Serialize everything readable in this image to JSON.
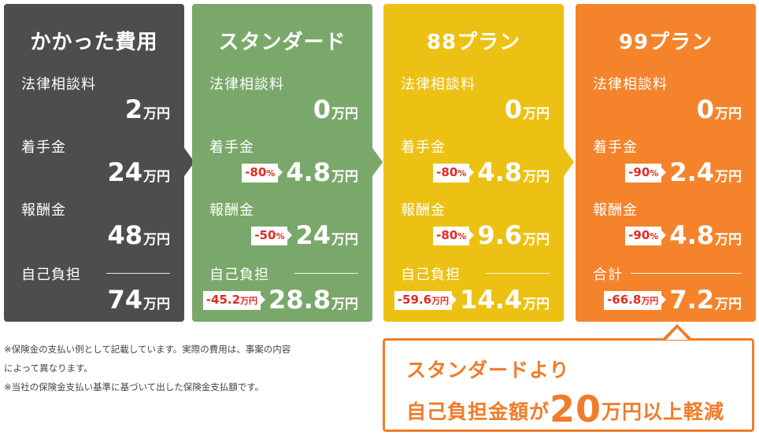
{
  "colors": {
    "gray": "#4d4d4d",
    "green": "#7aa86a",
    "yellow": "#ecc113",
    "orange": "#f5832b",
    "badge_red": "#e32a22"
  },
  "cards": [
    {
      "title": "かかった費用",
      "rows": [
        {
          "label": "法律相談料",
          "value": "2",
          "unit": "万円"
        },
        {
          "label": "着手金",
          "value": "24",
          "unit": "万円"
        },
        {
          "label": "報酬金",
          "value": "48",
          "unit": "万円"
        },
        {
          "label": "自己負担",
          "value": "74",
          "unit": "万円"
        }
      ]
    },
    {
      "title": "スタンダード",
      "rows": [
        {
          "label": "法律相談料",
          "value": "0",
          "unit": "万円"
        },
        {
          "label": "着手金",
          "badge": "-80",
          "badge_unit": "%",
          "value": "4.8",
          "unit": "万円"
        },
        {
          "label": "報酬金",
          "badge": "-50",
          "badge_unit": "%",
          "value": "24",
          "unit": "万円"
        },
        {
          "label": "自己負担",
          "badge": "-45.2",
          "badge_unit": "万円",
          "value": "28.8",
          "unit": "万円"
        }
      ]
    },
    {
      "title": "88プラン",
      "rows": [
        {
          "label": "法律相談料",
          "value": "0",
          "unit": "万円"
        },
        {
          "label": "着手金",
          "badge": "-80",
          "badge_unit": "%",
          "value": "4.8",
          "unit": "万円"
        },
        {
          "label": "報酬金",
          "badge": "-80",
          "badge_unit": "%",
          "value": "9.6",
          "unit": "万円"
        },
        {
          "label": "自己負担",
          "badge": "-59.6",
          "badge_unit": "万円",
          "value": "14.4",
          "unit": "万円"
        }
      ]
    },
    {
      "title": "99プラン",
      "rows": [
        {
          "label": "法律相談料",
          "value": "0",
          "unit": "万円"
        },
        {
          "label": "着手金",
          "badge": "-90",
          "badge_unit": "%",
          "value": "2.4",
          "unit": "万円"
        },
        {
          "label": "報酬金",
          "badge": "-90",
          "badge_unit": "%",
          "value": "4.8",
          "unit": "万円"
        },
        {
          "label": "合計",
          "badge": "-66.8",
          "badge_unit": "万円",
          "value": "7.2",
          "unit": "万円"
        }
      ]
    }
  ],
  "notes": {
    "line1": "※保険金の支払い例として記載しています。実際の費用は、事案の内容",
    "line2": "によって異なります。",
    "line3": "※当社の保険金支払い基準に基づいて出した保険金支払額です。"
  },
  "callout": {
    "line1": "スタンダードより",
    "line2_pre": "自己負担金額が",
    "line2_big": "20",
    "line2_post": "万円以上軽減"
  }
}
